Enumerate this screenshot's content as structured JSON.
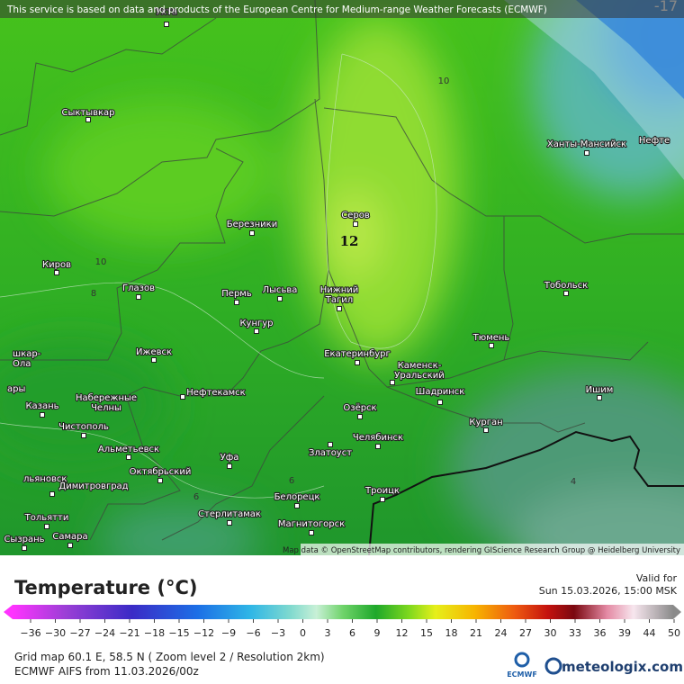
{
  "header": {
    "notice": "This service is based on data and products of the European Centre for Medium-range Weather Forecasts (ECMWF)"
  },
  "map": {
    "contour_labels": [
      "-17",
      "10",
      "12",
      "10",
      "8",
      "6",
      "6",
      "4"
    ],
    "cities": [
      [
        "Ухта"
      ],
      [
        "Сыктывкар"
      ],
      [
        "Серов"
      ],
      [
        "Ханты-Мансийск"
      ],
      [
        "Нефте"
      ],
      [
        "Березники"
      ],
      [
        "Киров"
      ],
      [
        "Глазов"
      ],
      [
        "Пермь"
      ],
      [
        "Лысьва"
      ],
      [
        "Нижний",
        "Тагил"
      ],
      [
        "Тобольск"
      ],
      [
        "Кунгур"
      ],
      [
        "Тюмень"
      ],
      [
        "Ижевск"
      ],
      [
        "Екатеринбург"
      ],
      [
        "Каменск-",
        "Уральский"
      ],
      [
        "шкар-",
        "Ола"
      ],
      [
        "Нефтекамск"
      ],
      [
        "Набережные",
        "Челны"
      ],
      [
        "Шадринск"
      ],
      [
        "Ишим"
      ],
      [
        "ары"
      ],
      [
        "Казань"
      ],
      [
        "Озёрск"
      ],
      [
        "Чистополь"
      ],
      [
        "Курган"
      ],
      [
        "Челябинск"
      ],
      [
        "Альметьевск"
      ],
      [
        "Златоуст"
      ],
      [
        "Уфа"
      ],
      [
        "Октябрьский"
      ],
      [
        "льяновск"
      ],
      [
        "Димитровград"
      ],
      [
        "Троицк"
      ],
      [
        "Белорецк"
      ],
      [
        "Стерлитамак"
      ],
      [
        "Тольятти"
      ],
      [
        "Магнитогорск"
      ],
      [
        "Сызрань"
      ],
      [
        "Самара"
      ]
    ],
    "attribution": "Map data © OpenStreetMap contributors, rendering GIScience Research Group @ Heidelberg University"
  },
  "legend": {
    "title": "Temperature (°C)",
    "ticks": [
      "−36",
      "−30",
      "−27",
      "−24",
      "−21",
      "−18",
      "−15",
      "−12",
      "−9",
      "−6",
      "−3",
      "0",
      "3",
      "6",
      "9",
      "12",
      "15",
      "18",
      "21",
      "24",
      "27",
      "30",
      "33",
      "36",
      "39",
      "44",
      "50"
    ]
  },
  "valid": {
    "label": "Valid for",
    "time": "Sun 15.03.2026, 15:00 MSK"
  },
  "footer": {
    "grid": "Grid map 60.1 E, 58.5 N ( Zoom level 2 / Resolution 2km)",
    "model": "ECMWF AIFS from  11.03.2026/00z"
  },
  "logos": {
    "ecmwf": "ECMWF",
    "meteologix": "meteologix.com"
  }
}
